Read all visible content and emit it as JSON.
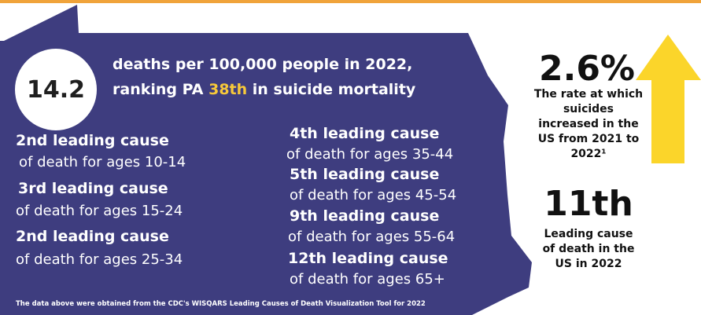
{
  "headline": {
    "stat": "14.2",
    "line1": "deaths per 100,000 people in 2022,",
    "line2_prefix": "ranking PA ",
    "line2_highlight": "38th",
    "line2_suffix": " in suicide mortality"
  },
  "causes_left": [
    {
      "title": "2nd leading cause",
      "sub": "of death for ages 10-14"
    },
    {
      "title": "3rd leading cause",
      "sub": "of death for ages 15-24"
    },
    {
      "title": "2nd leading cause",
      "sub": "of death for ages 25-34"
    }
  ],
  "causes_right": [
    {
      "title": "4th leading cause",
      "sub": "of death for ages 35-44"
    },
    {
      "title": "5th leading cause",
      "sub": "of death for ages 45-54"
    },
    {
      "title": "9th leading cause",
      "sub": "of death for ages 55-64"
    },
    {
      "title": "12th leading cause",
      "sub": "of death for ages 65+"
    }
  ],
  "source_note": "The data above were obtained from the CDC's WISQARS Leading Causes of Death Visualization Tool  for 2022",
  "side_stats": {
    "rate_value": "2.6%",
    "rate_text": "The rate at which suicides increased in the US from 2021 to 2022¹",
    "rank_value": "11th",
    "rank_text": "Leading cause of death in the US in 2022"
  },
  "colors": {
    "state_fill": "#3e3d7f",
    "highlight": "#f7c93a",
    "arrow": "#fbd52a",
    "top_bar": "#f0a33a"
  },
  "icons": {
    "state_shape": "pennsylvania-outline",
    "arrow": "up-arrow-icon"
  }
}
